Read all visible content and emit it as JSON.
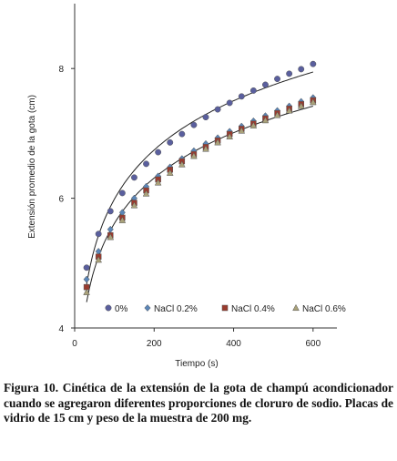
{
  "chart_data": {
    "type": "scatter",
    "xlabel": "Tiempo (s)",
    "ylabel": "Extensión promedio de la gota (cm)",
    "xlim": [
      0,
      660
    ],
    "ylim": [
      4,
      9
    ],
    "xticks": [
      0,
      200,
      400,
      600
    ],
    "yticks": [
      4,
      6,
      8
    ],
    "legend_position": "bottom",
    "x": [
      30,
      60,
      90,
      120,
      150,
      180,
      210,
      240,
      270,
      300,
      330,
      360,
      390,
      420,
      450,
      480,
      510,
      540,
      570,
      600
    ],
    "series": [
      {
        "name": "0%",
        "marker": "circle",
        "color": "#5a5f9e",
        "values": [
          4.93,
          5.45,
          5.8,
          6.08,
          6.32,
          6.53,
          6.71,
          6.86,
          6.99,
          7.13,
          7.25,
          7.37,
          7.47,
          7.57,
          7.66,
          7.75,
          7.84,
          7.92,
          7.99,
          8.07
        ]
      },
      {
        "name": "NaCl  0.2%",
        "marker": "diamond",
        "color": "#5b86b8",
        "values": [
          4.75,
          5.18,
          5.52,
          5.78,
          6.0,
          6.18,
          6.34,
          6.48,
          6.61,
          6.73,
          6.84,
          6.93,
          7.03,
          7.11,
          7.19,
          7.27,
          7.35,
          7.42,
          7.49,
          7.55
        ]
      },
      {
        "name": "NaCl 0.4%",
        "marker": "square",
        "color": "#9a3b2e",
        "values": [
          4.63,
          5.1,
          5.43,
          5.7,
          5.93,
          6.12,
          6.29,
          6.44,
          6.57,
          6.68,
          6.79,
          6.89,
          6.99,
          7.07,
          7.15,
          7.23,
          7.31,
          7.38,
          7.45,
          7.51
        ]
      },
      {
        "name": "NaCl 0.6%",
        "marker": "triangle",
        "color": "#aaa27a",
        "values": [
          4.55,
          5.05,
          5.4,
          5.66,
          5.89,
          6.07,
          6.24,
          6.39,
          6.52,
          6.65,
          6.76,
          6.86,
          6.95,
          7.04,
          7.12,
          7.2,
          7.28,
          7.35,
          7.42,
          7.48
        ]
      }
    ]
  },
  "caption": "Figura 10. Cinética de la extensión de la gota de champú acondicionador cuando se agregaron diferentes proporciones de cloruro de sodio. Placas de vidrio de 15 cm y peso de la muestra de 200 mg."
}
